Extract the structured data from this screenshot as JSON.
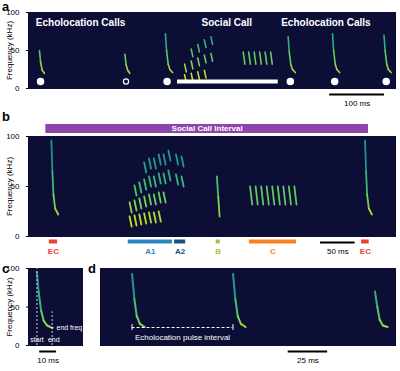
{
  "chart_data": [
    {
      "type": "spectrogram",
      "panel": "a",
      "ylabel": "Frequency (kHz)",
      "xlim": [
        0,
        670
      ],
      "ylim": [
        0,
        100
      ],
      "yticks": [
        0,
        50,
        100
      ],
      "tick_labels": "y",
      "color": "viridis",
      "annotations": [
        {
          "text": "Echolocation Calls",
          "x": 95,
          "y": 86
        },
        {
          "text": "Social Call",
          "x": 362,
          "y": 86
        },
        {
          "text": "Echolocation Calls",
          "x": 543,
          "y": 86
        }
      ],
      "calls": [
        [
          [
            20,
            50
          ],
          [
            22,
            35
          ],
          [
            25,
            24
          ],
          [
            29,
            20
          ]
        ],
        [
          [
            176,
            45
          ],
          [
            178,
            32
          ],
          [
            181,
            24
          ],
          [
            185,
            20
          ]
        ],
        [
          [
            250,
            72
          ],
          [
            252,
            50
          ],
          [
            255,
            32
          ],
          [
            258,
            25
          ],
          [
            263,
            21
          ]
        ],
        [
          [
            474,
            68
          ],
          [
            476,
            48
          ],
          [
            479,
            31
          ],
          [
            482,
            25
          ],
          [
            487,
            21
          ]
        ],
        [
          [
            555,
            72
          ],
          [
            557,
            50
          ],
          [
            560,
            32
          ],
          [
            563,
            25
          ],
          [
            568,
            21
          ]
        ],
        [
          [
            649,
            70
          ],
          [
            651,
            50
          ],
          [
            654,
            32
          ],
          [
            657,
            25
          ],
          [
            662,
            21
          ]
        ],
        [
          [
            285,
            18
          ],
          [
            288,
            8
          ]
        ],
        [
          [
            285,
            32
          ],
          [
            288,
            22
          ]
        ],
        [
          [
            297,
            20
          ],
          [
            300,
            10
          ]
        ],
        [
          [
            297,
            36
          ],
          [
            300,
            26
          ]
        ],
        [
          [
            297,
            52
          ],
          [
            300,
            42
          ]
        ],
        [
          [
            309,
            22
          ],
          [
            312,
            12
          ]
        ],
        [
          [
            309,
            40
          ],
          [
            312,
            30
          ]
        ],
        [
          [
            309,
            58
          ],
          [
            312,
            48
          ]
        ],
        [
          [
            321,
            24
          ],
          [
            324,
            14
          ]
        ],
        [
          [
            321,
            44
          ],
          [
            324,
            34
          ]
        ],
        [
          [
            321,
            64
          ],
          [
            324,
            54
          ]
        ],
        [
          [
            333,
            46
          ],
          [
            336,
            36
          ]
        ],
        [
          [
            333,
            68
          ],
          [
            336,
            58
          ]
        ],
        [
          [
            392,
            48
          ],
          [
            395,
            32
          ]
        ],
        [
          [
            402,
            48
          ],
          [
            405,
            32
          ]
        ],
        [
          [
            412,
            48
          ],
          [
            415,
            32
          ]
        ],
        [
          [
            422,
            48
          ],
          [
            425,
            32
          ]
        ],
        [
          [
            432,
            48
          ],
          [
            435,
            32
          ]
        ],
        [
          [
            442,
            48
          ],
          [
            445,
            32
          ]
        ]
      ],
      "markers": [
        {
          "x": 22,
          "marker": "circle"
        },
        {
          "x": 178,
          "marker": "open circle"
        },
        {
          "x": 253,
          "marker": "circle"
        },
        {
          "x": 478,
          "marker": "circle"
        },
        {
          "x": 559,
          "marker": "circle"
        },
        {
          "x": 653,
          "marker": "circle"
        }
      ],
      "social_call_bar": [
        272,
        456
      ],
      "scale_bar": {
        "length": 100,
        "label": "100 ms"
      }
    },
    {
      "type": "spectrogram",
      "panel": "b",
      "ylabel": "Frequency (kHz)",
      "xlim": [
        0,
        530
      ],
      "ylim": [
        0,
        100
      ],
      "yticks": [
        0,
        50,
        100
      ],
      "tick_labels": "y",
      "color": "viridis",
      "interval": {
        "label": "Social Call Interval",
        "x1": 25,
        "x2": 491,
        "color": "#8e44ad"
      },
      "segments": [
        {
          "label": "EC",
          "x1": 30,
          "x2": 42,
          "color": "#e8412c"
        },
        {
          "label": "A1",
          "x1": 144,
          "x2": 208,
          "color": "#2e86c1"
        },
        {
          "label": "A2",
          "x1": 211,
          "x2": 227,
          "color": "#1b4f8a"
        },
        {
          "label": "B",
          "x1": 271,
          "x2": 277,
          "color": "#a4c639"
        },
        {
          "label": "C",
          "x1": 319,
          "x2": 387,
          "color": "#f5821f"
        },
        {
          "label": "EC",
          "x1": 481,
          "x2": 492,
          "color": "#e8412c"
        }
      ],
      "calls": [
        [
          [
            33,
            96
          ],
          [
            34.5,
            65
          ],
          [
            36,
            42
          ],
          [
            38.5,
            28
          ],
          [
            43,
            22
          ]
        ],
        [
          [
            486,
            96
          ],
          [
            487.5,
            65
          ],
          [
            489,
            42
          ],
          [
            491.5,
            28
          ],
          [
            496,
            22
          ]
        ],
        [
          [
            146,
            20
          ],
          [
            149,
            10
          ]
        ],
        [
          [
            146,
            34
          ],
          [
            149,
            24
          ]
        ],
        [
          [
            153,
            21
          ],
          [
            156,
            11
          ]
        ],
        [
          [
            153,
            36
          ],
          [
            156,
            26
          ]
        ],
        [
          [
            153,
            51
          ],
          [
            156,
            41
          ]
        ],
        [
          [
            160,
            22
          ],
          [
            163,
            12
          ]
        ],
        [
          [
            160,
            38
          ],
          [
            163,
            28
          ]
        ],
        [
          [
            160,
            54
          ],
          [
            163,
            44
          ]
        ],
        [
          [
            167,
            23
          ],
          [
            170,
            13
          ]
        ],
        [
          [
            167,
            40
          ],
          [
            170,
            30
          ]
        ],
        [
          [
            167,
            57
          ],
          [
            170,
            47
          ]
        ],
        [
          [
            167,
            74
          ],
          [
            170,
            64
          ]
        ],
        [
          [
            174,
            24
          ],
          [
            177,
            14
          ]
        ],
        [
          [
            174,
            42
          ],
          [
            177,
            32
          ]
        ],
        [
          [
            174,
            60
          ],
          [
            177,
            50
          ]
        ],
        [
          [
            174,
            78
          ],
          [
            177,
            68
          ]
        ],
        [
          [
            181,
            24
          ],
          [
            184,
            14
          ]
        ],
        [
          [
            181,
            42
          ],
          [
            184,
            32
          ]
        ],
        [
          [
            181,
            60
          ],
          [
            184,
            50
          ]
        ],
        [
          [
            181,
            78
          ],
          [
            184,
            68
          ]
        ],
        [
          [
            188,
            25
          ],
          [
            191,
            15
          ]
        ],
        [
          [
            188,
            44
          ],
          [
            191,
            34
          ]
        ],
        [
          [
            188,
            63
          ],
          [
            191,
            53
          ]
        ],
        [
          [
            188,
            82
          ],
          [
            191,
            72
          ]
        ],
        [
          [
            195,
            44
          ],
          [
            198,
            34
          ]
        ],
        [
          [
            195,
            63
          ],
          [
            198,
            53
          ]
        ],
        [
          [
            195,
            82
          ],
          [
            198,
            72
          ]
        ],
        [
          [
            202,
            66
          ],
          [
            205,
            56
          ]
        ],
        [
          [
            202,
            86
          ],
          [
            205,
            76
          ]
        ],
        [
          [
            213,
            62
          ],
          [
            216,
            52
          ]
        ],
        [
          [
            213,
            82
          ],
          [
            216,
            72
          ]
        ],
        [
          [
            221,
            60
          ],
          [
            224,
            50
          ]
        ],
        [
          [
            221,
            80
          ],
          [
            224,
            70
          ]
        ],
        [
          [
            272,
            60
          ],
          [
            274,
            40
          ],
          [
            276,
            20
          ]
        ],
        [
          [
            320,
            50
          ],
          [
            323,
            32
          ]
        ],
        [
          [
            328,
            50
          ],
          [
            331,
            32
          ]
        ],
        [
          [
            336,
            50
          ],
          [
            339,
            32
          ]
        ],
        [
          [
            344,
            50
          ],
          [
            347,
            32
          ]
        ],
        [
          [
            352,
            50
          ],
          [
            355,
            32
          ]
        ],
        [
          [
            360,
            50
          ],
          [
            363,
            32
          ]
        ],
        [
          [
            368,
            50
          ],
          [
            371,
            32
          ]
        ],
        [
          [
            376,
            50
          ],
          [
            379,
            32
          ]
        ],
        [
          [
            384,
            50
          ],
          [
            387,
            32
          ]
        ]
      ],
      "scale_bar": {
        "length": 50,
        "label": "50 ms"
      }
    },
    {
      "type": "spectrogram",
      "panel": "c",
      "ylabel": "Frequency (kHz)",
      "xlim": [
        0,
        32
      ],
      "ylim": [
        0,
        100
      ],
      "yticks": [
        0,
        50,
        100
      ],
      "tick_labels": "y",
      "color": "viridis",
      "calls": [
        [
          [
            5,
            95
          ],
          [
            6,
            70
          ],
          [
            7.5,
            45
          ],
          [
            9,
            32
          ],
          [
            11,
            26
          ],
          [
            14,
            23
          ]
        ]
      ],
      "measurement_labels": [
        {
          "text": "start",
          "x": 5,
          "y": 8
        },
        {
          "text": "end",
          "x": 15,
          "y": 8
        },
        {
          "text": "end freq",
          "x": 16,
          "y": 23
        }
      ],
      "scale_bar": {
        "length": 10,
        "label": "10 ms"
      }
    },
    {
      "type": "spectrogram",
      "panel": "d",
      "xlim": [
        0,
        187
      ],
      "ylim": [
        0,
        100
      ],
      "tick_labels": false,
      "color": "viridis",
      "calls": [
        [
          [
            20,
            93
          ],
          [
            21.5,
            60
          ],
          [
            23,
            38
          ],
          [
            25,
            28
          ],
          [
            28,
            24
          ]
        ],
        [
          [
            84,
            93
          ],
          [
            85.5,
            60
          ],
          [
            87,
            38
          ],
          [
            89,
            28
          ],
          [
            92,
            24
          ]
        ],
        [
          [
            174,
            70
          ],
          [
            175.5,
            50
          ],
          [
            177,
            33
          ],
          [
            179,
            26
          ],
          [
            182,
            24
          ]
        ]
      ],
      "interval": {
        "label": "Echolocation pulse interval",
        "x1": 20,
        "x2": 84,
        "line_style": "dashed"
      },
      "scale_bar": {
        "length": 25,
        "label": "25 ms"
      }
    }
  ]
}
